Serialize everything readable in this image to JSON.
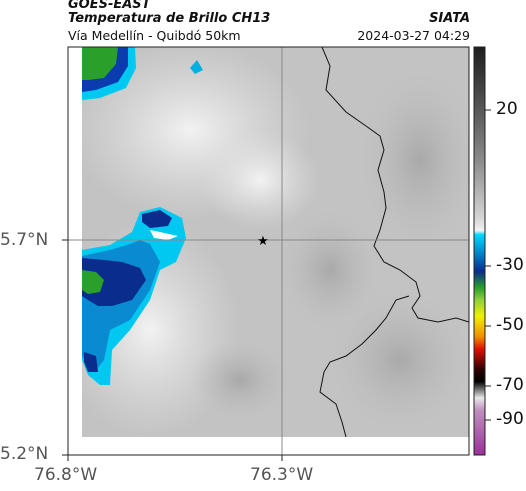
{
  "header": {
    "satellite": "GOES-EAST",
    "product": "Temperatura de Brillo CH13",
    "region": "Vía Medellín - Quibdó 50km",
    "organization": "SIATA",
    "timestamp": "2024-03-27 04:29"
  },
  "map": {
    "lat_labels": [
      "5.7°N",
      "5.2°N"
    ],
    "lon_labels": [
      "76.8°W",
      "76.3°W"
    ],
    "marker": "star",
    "background": "cloud brightness temperature field"
  },
  "colorbar": {
    "labels": [
      "20",
      "-30",
      "-50",
      "-70",
      "-90"
    ],
    "colors": {
      "warm_gray": "#a8a8a8",
      "cyan": "#00c8f0",
      "blue": "#0a2c8c",
      "green": "#2aa02a",
      "yellow": "#f0f000",
      "red": "#e01000",
      "magenta": "#b040b0"
    }
  }
}
